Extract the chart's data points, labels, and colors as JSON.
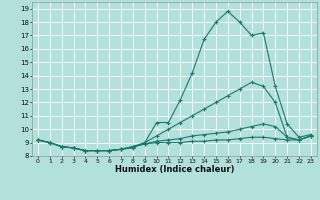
{
  "xlabel": "Humidex (Indice chaleur)",
  "background_color": "#b2e0db",
  "grid_color": "#ffffff",
  "line_color": "#1a7a6e",
  "xlim": [
    -0.5,
    23.5
  ],
  "ylim": [
    8.0,
    19.5
  ],
  "xticks": [
    0,
    1,
    2,
    3,
    4,
    5,
    6,
    7,
    8,
    9,
    10,
    11,
    12,
    13,
    14,
    15,
    16,
    17,
    18,
    19,
    20,
    21,
    22,
    23
  ],
  "yticks": [
    8,
    9,
    10,
    11,
    12,
    13,
    14,
    15,
    16,
    17,
    18,
    19
  ],
  "line1_x": [
    0,
    1,
    2,
    3,
    4,
    5,
    6,
    7,
    8,
    9,
    10,
    11,
    12,
    13,
    14,
    15,
    16,
    17,
    18,
    19,
    20,
    21,
    22,
    23
  ],
  "line1_y": [
    9.2,
    9.0,
    8.7,
    8.6,
    8.4,
    8.4,
    8.4,
    8.5,
    8.6,
    9.0,
    10.5,
    10.5,
    12.2,
    14.2,
    16.7,
    18.0,
    18.8,
    18.0,
    17.0,
    17.2,
    13.2,
    10.4,
    9.4,
    9.6
  ],
  "line2_x": [
    0,
    1,
    2,
    3,
    4,
    5,
    6,
    7,
    8,
    9,
    10,
    11,
    12,
    13,
    14,
    15,
    16,
    17,
    18,
    19,
    20,
    21,
    22,
    23
  ],
  "line2_y": [
    9.2,
    9.0,
    8.7,
    8.6,
    8.4,
    8.4,
    8.4,
    8.5,
    8.7,
    9.0,
    9.5,
    10.0,
    10.5,
    11.0,
    11.5,
    12.0,
    12.5,
    13.0,
    13.5,
    13.2,
    12.0,
    9.4,
    9.2,
    9.5
  ],
  "line3_x": [
    0,
    1,
    2,
    3,
    4,
    5,
    6,
    7,
    8,
    9,
    10,
    11,
    12,
    13,
    14,
    15,
    16,
    17,
    18,
    19,
    20,
    21,
    22,
    23
  ],
  "line3_y": [
    9.2,
    9.0,
    8.7,
    8.6,
    8.4,
    8.4,
    8.4,
    8.5,
    8.7,
    8.9,
    9.1,
    9.2,
    9.3,
    9.5,
    9.6,
    9.7,
    9.8,
    10.0,
    10.2,
    10.4,
    10.2,
    9.4,
    9.2,
    9.5
  ],
  "line4_x": [
    0,
    1,
    2,
    3,
    4,
    5,
    6,
    7,
    8,
    9,
    10,
    11,
    12,
    13,
    14,
    15,
    16,
    17,
    18,
    19,
    20,
    21,
    22,
    23
  ],
  "line4_y": [
    9.2,
    9.0,
    8.7,
    8.6,
    8.4,
    8.4,
    8.4,
    8.5,
    8.7,
    8.9,
    9.0,
    9.0,
    9.0,
    9.1,
    9.1,
    9.2,
    9.2,
    9.3,
    9.4,
    9.4,
    9.3,
    9.2,
    9.2,
    9.5
  ]
}
